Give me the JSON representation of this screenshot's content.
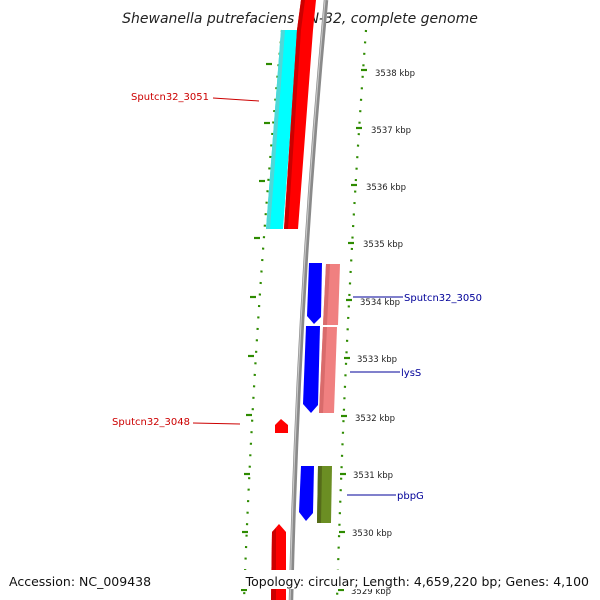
{
  "title": "Shewanella putrefaciens CN-32, complete genome",
  "footer": {
    "accession": "Accession: NC_009438",
    "summary": "Topology: circular; Length: 4,659,220 bp; Genes: 4,100"
  },
  "ticks": [
    "3538 kbp",
    "3537 kbp",
    "3536 kbp",
    "3535 kbp",
    "3534 kbp",
    "3533 kbp",
    "3532 kbp",
    "3531 kbp",
    "3530 kbp",
    "3529 kbp"
  ],
  "gene_labels": {
    "sputcn32_3051": "Sputcn32_3051",
    "sputcn32_3050": "Sputcn32_3050",
    "lysS": "lysS",
    "sputcn32_3048": "Sputcn32_3048",
    "pbpG": "pbpG"
  },
  "colors": {
    "label_red": "#cc0000",
    "label_blue": "#000099",
    "tick_green": "#2e8b00",
    "backbone": "#8a8a8a",
    "cyan": "#00ffff",
    "red": "#ff0000",
    "blue": "#0000ff",
    "salmon": "#f08080",
    "olive": "#6b8e23"
  }
}
